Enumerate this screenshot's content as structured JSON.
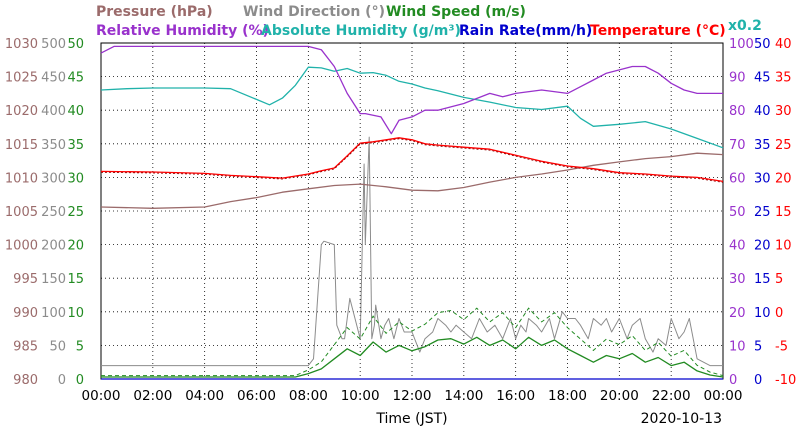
{
  "chart_data": {
    "type": "line",
    "date": "2020-10-13",
    "xlabel": "Time (JST)",
    "x_ticks": [
      "00:00",
      "02:00",
      "04:00",
      "06:00",
      "08:00",
      "10:00",
      "12:00",
      "14:00",
      "16:00",
      "18:00",
      "20:00",
      "22:00",
      "00:00"
    ],
    "x_range_hours": [
      0,
      24
    ],
    "grid": true,
    "legend": [
      {
        "key": "pressure",
        "text": "Pressure (hPa)",
        "color": "#9b6b6b"
      },
      {
        "key": "wind_dir",
        "text": "Wind Direction (°)",
        "color": "#8c8c8c"
      },
      {
        "key": "wind_speed",
        "text": "Wind Speed (m/s)",
        "color": "#228b22"
      },
      {
        "key": "rel_hum",
        "text": "Relative Humidity (%)",
        "color": "#9932cc"
      },
      {
        "key": "abs_hum",
        "text": "Absolute Humidity (g/m³)",
        "color": "#20b2aa"
      },
      {
        "key": "rain",
        "text": "Rain Rate(mm/h)",
        "color": "#0000cd"
      },
      {
        "key": "temp",
        "text": "Temperature (°C)",
        "color": "#ff0000"
      },
      {
        "key": "rain_scale",
        "text": "x0.2",
        "color": "#20b2aa"
      }
    ],
    "axes": {
      "pressure": {
        "ylim": [
          980,
          1030
        ],
        "ticks": [
          "980",
          "985",
          "990",
          "995",
          "1000",
          "1005",
          "1010",
          "1015",
          "1020",
          "1025",
          "1030"
        ],
        "color": "#9b6b6b"
      },
      "wind_dir": {
        "ylim": [
          0,
          500
        ],
        "ticks": [
          "0",
          "50",
          "100",
          "150",
          "200",
          "250",
          "300",
          "350",
          "400",
          "450",
          "500"
        ],
        "color": "#8c8c8c"
      },
      "wind_speed": {
        "ylim": [
          0,
          50
        ],
        "ticks": [
          "0",
          "5",
          "10",
          "15",
          "20",
          "25",
          "30",
          "35",
          "40",
          "45",
          "50"
        ],
        "color": "#228b22"
      },
      "rel_hum": {
        "ylim": [
          0,
          100
        ],
        "ticks": [
          "0",
          "10",
          "20",
          "30",
          "40",
          "50",
          "60",
          "70",
          "80",
          "90",
          "100"
        ],
        "color": "#9932cc"
      },
      "rain": {
        "ylim": [
          0,
          50
        ],
        "ticks": [
          "0",
          "5",
          "10",
          "15",
          "20",
          "25",
          "30",
          "35",
          "40",
          "45",
          "50"
        ],
        "color": "#0000cd"
      },
      "temp": {
        "ylim": [
          -10,
          40
        ],
        "ticks": [
          "-10",
          "-5",
          "0",
          "5",
          "10",
          "15",
          "20",
          "25",
          "30",
          "35",
          "40"
        ],
        "color": "#ff0000"
      }
    },
    "series": [
      {
        "name": "Pressure (hPa)",
        "axis": "pressure",
        "color": "#9b6b6b",
        "x": [
          0,
          2,
          4,
          5,
          6,
          7,
          8,
          9,
          10,
          11,
          12,
          13,
          14,
          15,
          16,
          17,
          18,
          19,
          20,
          21,
          22,
          23,
          24
        ],
        "y": [
          1005.6,
          1005.4,
          1005.6,
          1006.4,
          1007.0,
          1007.8,
          1008.3,
          1008.8,
          1009.0,
          1008.6,
          1008.1,
          1008.0,
          1008.5,
          1009.3,
          1010.0,
          1010.5,
          1011.1,
          1011.8,
          1012.3,
          1012.8,
          1013.1,
          1013.6,
          1013.4
        ]
      },
      {
        "name": "Relative Humidity (%)",
        "axis": "rel_hum",
        "color": "#9932cc",
        "x": [
          0,
          0.5,
          8,
          8.5,
          9,
          9.5,
          10,
          10.2,
          10.8,
          11.2,
          11.5,
          12,
          12.5,
          13,
          14,
          15,
          15.5,
          16,
          17,
          18,
          18.5,
          19,
          19.5,
          20,
          20.5,
          21,
          21.5,
          22,
          22.5,
          23,
          23.5,
          24
        ],
        "y": [
          97,
          99,
          99,
          98,
          93,
          85,
          79,
          79,
          78,
          73,
          77,
          78,
          80,
          80,
          82,
          85,
          84,
          85,
          86,
          85,
          87,
          89,
          91,
          92,
          93,
          93,
          91,
          88,
          86,
          85,
          85,
          85
        ]
      },
      {
        "name": "Absolute Humidity (g/m³)",
        "axis": "abs_hum",
        "color": "#20b2aa",
        "x": [
          0,
          1,
          2,
          4,
          5,
          6,
          6.5,
          7,
          7.5,
          8,
          8.5,
          9,
          9.5,
          10,
          10.5,
          11,
          11.5,
          12,
          12.5,
          13,
          14,
          15,
          16,
          17,
          18,
          18.5,
          19,
          20,
          20.5,
          21,
          22,
          23,
          24
        ],
        "y": [
          43,
          43.2,
          43.3,
          43.3,
          43.2,
          41.6,
          40.8,
          41.8,
          43.7,
          46.4,
          46.3,
          45.8,
          46.2,
          45.5,
          45.6,
          45.2,
          44.3,
          43.9,
          43.3,
          42.9,
          41.9,
          41.2,
          40.4,
          40.1,
          40.6,
          38.8,
          37.6,
          37.9,
          38.1,
          38.3,
          37.2,
          35.8,
          34.4
        ]
      },
      {
        "name": "Temperature (°C)",
        "axis": "temp",
        "color": "#ff0000",
        "x": [
          0,
          2,
          4,
          5,
          6,
          7,
          8,
          8.5,
          9,
          9.5,
          10,
          10.5,
          11,
          11.5,
          12,
          12.5,
          13,
          14,
          15,
          16,
          17,
          18,
          19,
          20,
          21,
          22,
          23,
          24
        ],
        "y": [
          20.9,
          20.8,
          20.6,
          20.3,
          20.1,
          19.9,
          20.5,
          21.0,
          21.4,
          23.2,
          25.1,
          25.3,
          25.6,
          25.9,
          25.6,
          25.0,
          24.8,
          24.5,
          24.2,
          23.3,
          22.4,
          21.7,
          21.3,
          20.7,
          20.5,
          20.2,
          20.0,
          19.4
        ]
      },
      {
        "name": "Wind Direction (°)",
        "axis": "wind_dir",
        "color": "#8c8c8c",
        "x": [
          0,
          8.0,
          8.2,
          8.5,
          8.6,
          9.0,
          9.1,
          9.3,
          9.4,
          9.6,
          9.8,
          10.0,
          10.15,
          10.2,
          10.35,
          10.45,
          10.55,
          10.6,
          10.8,
          10.95,
          11.1,
          11.3,
          11.5,
          11.7,
          11.9,
          12.0,
          12.3,
          12.5,
          12.8,
          13.0,
          13.3,
          13.5,
          13.7,
          14.0,
          14.3,
          14.6,
          14.9,
          15.2,
          15.5,
          15.8,
          16.0,
          16.2,
          16.4,
          16.5,
          16.8,
          17.0,
          17.3,
          17.5,
          17.8,
          18.0,
          18.3,
          18.5,
          18.8,
          19.0,
          19.3,
          19.5,
          19.7,
          20.0,
          20.3,
          20.5,
          20.8,
          21.0,
          21.3,
          21.5,
          21.8,
          22.0,
          22.3,
          22.5,
          22.7,
          23.0,
          23.5,
          24
        ],
        "y": [
          20,
          20,
          30,
          200,
          205,
          200,
          80,
          60,
          60,
          120,
          90,
          60,
          320,
          200,
          360,
          60,
          80,
          110,
          60,
          80,
          90,
          60,
          90,
          70,
          70,
          70,
          40,
          60,
          70,
          90,
          80,
          70,
          80,
          70,
          60,
          90,
          70,
          80,
          60,
          90,
          60,
          80,
          70,
          90,
          80,
          70,
          90,
          60,
          100,
          90,
          90,
          80,
          60,
          90,
          80,
          90,
          70,
          90,
          60,
          80,
          90,
          60,
          40,
          60,
          50,
          90,
          60,
          70,
          90,
          30,
          20,
          20
        ]
      },
      {
        "name": "Wind Speed (m/s)",
        "axis": "wind_speed",
        "color": "#228b22",
        "x": [
          0,
          7.5,
          8,
          8.5,
          9,
          9.5,
          10,
          10.5,
          11,
          11.5,
          12,
          12.5,
          13,
          13.5,
          14,
          14.5,
          15,
          15.5,
          16,
          16.5,
          17,
          17.5,
          18,
          18.5,
          19,
          19.5,
          20,
          20.5,
          21,
          21.5,
          22,
          22.5,
          23,
          23.5,
          24
        ],
        "y": [
          0.3,
          0.3,
          0.8,
          1.5,
          3.0,
          4.5,
          3.5,
          5.5,
          4.0,
          5.0,
          4.2,
          4.8,
          5.8,
          6.0,
          5.2,
          6.2,
          5.0,
          5.8,
          4.5,
          6.2,
          5.0,
          5.8,
          4.5,
          3.5,
          2.5,
          3.5,
          3.0,
          3.8,
          2.5,
          3.2,
          2.0,
          2.5,
          1.2,
          0.6,
          0.3
        ]
      },
      {
        "name": "Rain Rate(mm/h)",
        "axis": "rain",
        "color": "#0000cd",
        "x": [
          0,
          24
        ],
        "y": [
          0,
          0
        ]
      }
    ]
  }
}
